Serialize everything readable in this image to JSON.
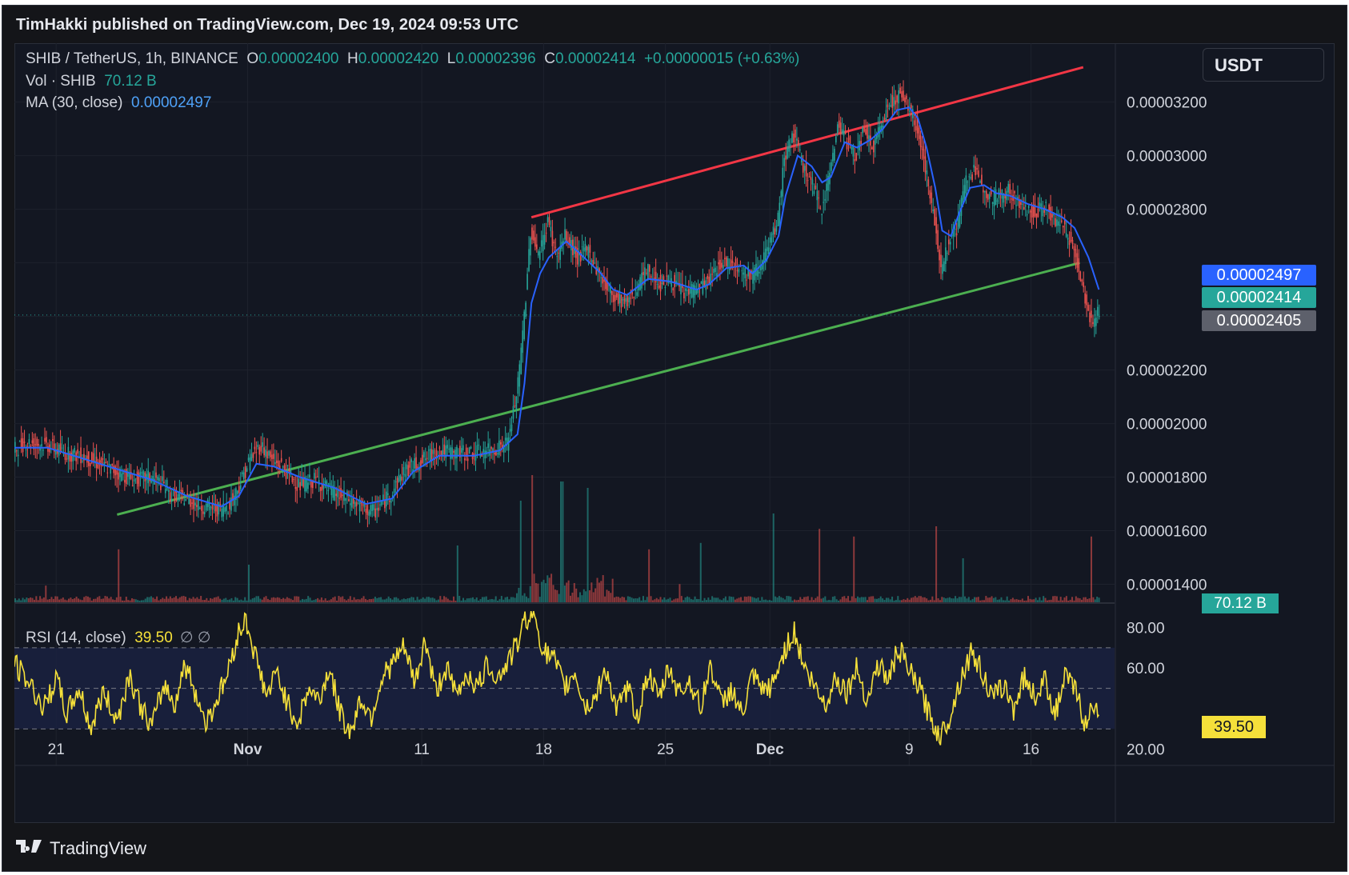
{
  "publisher": "TimHakki published on TradingView.com, Dec 19, 2024 09:53 UTC",
  "legend": {
    "symbol": "SHIB / TetherUS, 1h, BINANCE",
    "o_label": "O",
    "o_value": "0.00002400",
    "h_label": "H",
    "h_value": "0.00002420",
    "l_label": "L",
    "l_value": "0.00002396",
    "c_label": "C",
    "c_value": "0.00002414",
    "change": "+0.00000015 (+0.63%)",
    "vol_label": "Vol · SHIB",
    "vol_value": "70.12 B",
    "ma_label": "MA (30, close)",
    "ma_value": "0.00002497",
    "rsi_label": "RSI (14, close)",
    "rsi_value": "39.50",
    "rsi_extra": "∅ ∅"
  },
  "currency": "USDT",
  "tags": {
    "ma": "0.00002497",
    "close": "0.00002414",
    "cursor": "0.00002405",
    "volume": "70.12 B",
    "rsi": "39.50"
  },
  "colors": {
    "up": "#26a69a",
    "down": "#ef5350",
    "ma": "#2962ff",
    "upper_trend": "#f23645",
    "lower_trend": "#4caf50",
    "rsi": "#f5e03a",
    "background": "#131722"
  },
  "brand": "TradingView",
  "chart_data": [
    {
      "type": "candlestick",
      "title": "SHIB / TetherUS, 1h, BINANCE",
      "ylim": [
        1.33e-05,
        3.36e-05
      ],
      "y_ticks": [
        3.2e-05,
        3e-05,
        2.8e-05,
        2.6e-05,
        2.4e-05,
        2.2e-05,
        2e-05,
        1.8e-05,
        1.6e-05,
        1.4e-05
      ],
      "y_tick_labels": [
        "0.00003200",
        "0.00003000",
        "0.00002800",
        "",
        "",
        "0.00002200",
        "0.00002000",
        "0.00001800",
        "0.00001600",
        "0.00001400"
      ],
      "x_tick_labels": [
        "21",
        "Nov",
        "11",
        "18",
        "25",
        "Dec",
        "9",
        "16"
      ],
      "x_tick_days": [
        21,
        32,
        42,
        49,
        56,
        62,
        70,
        77
      ],
      "x_range_days": [
        18.6,
        81.8
      ],
      "close_path": [
        [
          18.6,
          1.9e-05
        ],
        [
          19.3,
          1.93e-05
        ],
        [
          20.5,
          1.92e-05
        ],
        [
          21.5,
          1.89e-05
        ],
        [
          22.5,
          1.88e-05
        ],
        [
          23.5,
          1.85e-05
        ],
        [
          24.5,
          1.82e-05
        ],
        [
          25.5,
          1.79e-05
        ],
        [
          26.5,
          1.8e-05
        ],
        [
          27.5,
          1.76e-05
        ],
        [
          26.5,
          1.75e-05
        ],
        [
          28.5,
          1.72e-05
        ],
        [
          29.5,
          1.69e-05
        ],
        [
          30.5,
          1.68e-05
        ],
        [
          31.0,
          1.7e-05
        ],
        [
          31.5,
          1.76e-05
        ],
        [
          32.2,
          1.87e-05
        ],
        [
          32.8,
          1.92e-05
        ],
        [
          33.5,
          1.86e-05
        ],
        [
          34.0,
          1.84e-05
        ],
        [
          35.0,
          1.77e-05
        ],
        [
          36.0,
          1.79e-05
        ],
        [
          37.0,
          1.74e-05
        ],
        [
          38.0,
          1.71e-05
        ],
        [
          38.8,
          1.68e-05
        ],
        [
          39.3,
          1.67e-05
        ],
        [
          40.3,
          1.74e-05
        ],
        [
          41.0,
          1.82e-05
        ],
        [
          42.0,
          1.86e-05
        ],
        [
          43.0,
          1.9e-05
        ],
        [
          44.0,
          1.89e-05
        ],
        [
          45.0,
          1.89e-05
        ],
        [
          46.0,
          1.9e-05
        ],
        [
          47.0,
          1.93e-05
        ],
        [
          47.6,
          2.15e-05
        ],
        [
          48.0,
          2.45e-05
        ],
        [
          48.3,
          2.72e-05
        ],
        [
          48.8,
          2.63e-05
        ],
        [
          49.3,
          2.76e-05
        ],
        [
          49.8,
          2.62e-05
        ],
        [
          50.3,
          2.7e-05
        ],
        [
          51.0,
          2.62e-05
        ],
        [
          51.6,
          2.65e-05
        ],
        [
          52.3,
          2.55e-05
        ],
        [
          53.0,
          2.48e-05
        ],
        [
          53.8,
          2.45e-05
        ],
        [
          54.4,
          2.51e-05
        ],
        [
          55.0,
          2.57e-05
        ],
        [
          55.8,
          2.52e-05
        ],
        [
          56.3,
          2.54e-05
        ],
        [
          57.0,
          2.49e-05
        ],
        [
          57.8,
          2.5e-05
        ],
        [
          58.5,
          2.53e-05
        ],
        [
          59.2,
          2.6e-05
        ],
        [
          60.0,
          2.6e-05
        ],
        [
          60.5,
          2.57e-05
        ],
        [
          61.0,
          2.55e-05
        ],
        [
          61.5,
          2.6e-05
        ],
        [
          62.0,
          2.66e-05
        ],
        [
          62.5,
          2.75e-05
        ],
        [
          62.9,
          3e-05
        ],
        [
          63.4,
          3.08e-05
        ],
        [
          63.9,
          2.97e-05
        ],
        [
          64.4,
          2.9e-05
        ],
        [
          65.0,
          2.8e-05
        ],
        [
          65.5,
          2.94e-05
        ],
        [
          66.0,
          3.13e-05
        ],
        [
          66.4,
          3.06e-05
        ],
        [
          67.0,
          3e-05
        ],
        [
          67.5,
          3.1e-05
        ],
        [
          68.0,
          3.02e-05
        ],
        [
          68.5,
          3.13e-05
        ],
        [
          69.0,
          3.2e-05
        ],
        [
          69.5,
          3.23e-05
        ],
        [
          70.0,
          3.18e-05
        ],
        [
          70.5,
          3.11e-05
        ],
        [
          71.0,
          2.95e-05
        ],
        [
          71.5,
          2.75e-05
        ],
        [
          71.9,
          2.58e-05
        ],
        [
          72.3,
          2.68e-05
        ],
        [
          72.8,
          2.73e-05
        ],
        [
          73.3,
          2.91e-05
        ],
        [
          73.8,
          2.94e-05
        ],
        [
          74.3,
          2.89e-05
        ],
        [
          74.8,
          2.84e-05
        ],
        [
          75.3,
          2.85e-05
        ],
        [
          75.8,
          2.87e-05
        ],
        [
          76.3,
          2.82e-05
        ],
        [
          76.8,
          2.8e-05
        ],
        [
          77.3,
          2.79e-05
        ],
        [
          77.8,
          2.81e-05
        ],
        [
          78.3,
          2.77e-05
        ],
        [
          78.8,
          2.74e-05
        ],
        [
          79.3,
          2.69e-05
        ],
        [
          79.8,
          2.58e-05
        ],
        [
          80.3,
          2.43e-05
        ],
        [
          80.6,
          2.38e-05
        ],
        [
          80.9,
          2.41e-05
        ]
      ],
      "ma_path": [
        [
          18.6,
          1.91e-05
        ],
        [
          20.5,
          1.91e-05
        ],
        [
          22.5,
          1.87e-05
        ],
        [
          24.5,
          1.83e-05
        ],
        [
          26.5,
          1.79e-05
        ],
        [
          28.5,
          1.73e-05
        ],
        [
          30.5,
          1.69e-05
        ],
        [
          31.5,
          1.73e-05
        ],
        [
          32.5,
          1.85e-05
        ],
        [
          33.5,
          1.84e-05
        ],
        [
          35.0,
          1.8e-05
        ],
        [
          37.0,
          1.76e-05
        ],
        [
          38.8,
          1.7e-05
        ],
        [
          40.3,
          1.72e-05
        ],
        [
          41.5,
          1.82e-05
        ],
        [
          43.0,
          1.88e-05
        ],
        [
          45.0,
          1.88e-05
        ],
        [
          46.5,
          1.9e-05
        ],
        [
          47.5,
          1.96e-05
        ],
        [
          47.9,
          2.15e-05
        ],
        [
          48.3,
          2.45e-05
        ],
        [
          48.8,
          2.56e-05
        ],
        [
          49.3,
          2.62e-05
        ],
        [
          50.3,
          2.68e-05
        ],
        [
          51.0,
          2.64e-05
        ],
        [
          52.3,
          2.56e-05
        ],
        [
          53.0,
          2.5e-05
        ],
        [
          53.8,
          2.48e-05
        ],
        [
          55.0,
          2.54e-05
        ],
        [
          56.3,
          2.53e-05
        ],
        [
          57.8,
          2.5e-05
        ],
        [
          58.5,
          2.52e-05
        ],
        [
          59.5,
          2.58e-05
        ],
        [
          60.5,
          2.59e-05
        ],
        [
          61.0,
          2.56e-05
        ],
        [
          61.8,
          2.61e-05
        ],
        [
          62.5,
          2.7e-05
        ],
        [
          62.9,
          2.85e-05
        ],
        [
          63.6,
          3e-05
        ],
        [
          64.4,
          2.96e-05
        ],
        [
          65.0,
          2.9e-05
        ],
        [
          65.5,
          2.92e-05
        ],
        [
          66.3,
          3.05e-05
        ],
        [
          67.0,
          3.03e-05
        ],
        [
          67.8,
          3.06e-05
        ],
        [
          68.5,
          3.1e-05
        ],
        [
          69.3,
          3.17e-05
        ],
        [
          70.0,
          3.18e-05
        ],
        [
          70.5,
          3.14e-05
        ],
        [
          71.0,
          3.03e-05
        ],
        [
          71.5,
          2.88e-05
        ],
        [
          71.9,
          2.72e-05
        ],
        [
          72.4,
          2.7e-05
        ],
        [
          72.9,
          2.79e-05
        ],
        [
          73.5,
          2.88e-05
        ],
        [
          74.3,
          2.89e-05
        ],
        [
          75.0,
          2.86e-05
        ],
        [
          75.8,
          2.85e-05
        ],
        [
          76.8,
          2.82e-05
        ],
        [
          77.8,
          2.8e-05
        ],
        [
          78.8,
          2.77e-05
        ],
        [
          79.5,
          2.73e-05
        ],
        [
          80.3,
          2.62e-05
        ],
        [
          80.9,
          2.5e-05
        ]
      ],
      "upper_trendline": [
        [
          48.3,
          2.77e-05
        ],
        [
          80.0,
          3.33e-05
        ]
      ],
      "lower_trendline": [
        [
          24.5,
          1.66e-05
        ],
        [
          79.8,
          2.6e-05
        ]
      ],
      "cursor_price": 2.405e-05
    },
    {
      "type": "bar",
      "title": "Vol · SHIB",
      "last_value": "70.12 B",
      "volume_relative_spikes": [
        [
          24.5,
          0.42
        ],
        [
          32.0,
          0.3
        ],
        [
          44.0,
          0.45
        ],
        [
          47.6,
          0.8
        ],
        [
          48.3,
          1.0
        ],
        [
          50.0,
          0.95
        ],
        [
          51.5,
          0.9
        ],
        [
          55.0,
          0.42
        ],
        [
          58.0,
          0.47
        ],
        [
          62.2,
          0.7
        ],
        [
          64.8,
          0.58
        ],
        [
          66.8,
          0.52
        ],
        [
          71.5,
          0.6
        ],
        [
          73.0,
          0.35
        ],
        [
          80.4,
          0.52
        ]
      ]
    },
    {
      "type": "line",
      "title": "RSI (14, close)",
      "ylim": [
        12,
        92
      ],
      "y_ticks": [
        80.0,
        60.0,
        40.0,
        20.0
      ],
      "y_tick_labels": [
        "80.00",
        "60.00",
        "",
        "20.00"
      ],
      "bands": [
        70,
        50,
        30
      ],
      "last_value": 39.5,
      "rsi_path": [
        [
          18.6,
          62
        ],
        [
          19.5,
          52
        ],
        [
          20.3,
          40
        ],
        [
          21.0,
          55
        ],
        [
          21.6,
          37
        ],
        [
          22.3,
          50
        ],
        [
          23.0,
          30
        ],
        [
          23.7,
          48
        ],
        [
          24.5,
          34
        ],
        [
          25.2,
          57
        ],
        [
          25.9,
          40
        ],
        [
          26.5,
          31
        ],
        [
          27.2,
          52
        ],
        [
          27.8,
          42
        ],
        [
          28.4,
          62
        ],
        [
          29.0,
          48
        ],
        [
          29.6,
          33
        ],
        [
          30.2,
          44
        ],
        [
          30.8,
          56
        ],
        [
          31.4,
          76
        ],
        [
          31.9,
          84
        ],
        [
          32.5,
          64
        ],
        [
          33.1,
          46
        ],
        [
          33.7,
          58
        ],
        [
          34.3,
          42
        ],
        [
          34.9,
          33
        ],
        [
          35.5,
          50
        ],
        [
          36.1,
          44
        ],
        [
          36.7,
          60
        ],
        [
          37.3,
          38
        ],
        [
          37.9,
          28
        ],
        [
          38.5,
          45
        ],
        [
          39.1,
          36
        ],
        [
          39.7,
          55
        ],
        [
          40.3,
          62
        ],
        [
          41.0,
          70
        ],
        [
          41.6,
          52
        ],
        [
          42.2,
          74
        ],
        [
          42.8,
          48
        ],
        [
          43.4,
          60
        ],
        [
          44.0,
          46
        ],
        [
          44.6,
          58
        ],
        [
          45.2,
          50
        ],
        [
          45.8,
          62
        ],
        [
          46.4,
          55
        ],
        [
          47.0,
          64
        ],
        [
          47.5,
          72
        ],
        [
          48.0,
          85
        ],
        [
          48.5,
          86
        ],
        [
          49.0,
          68
        ],
        [
          49.6,
          64
        ],
        [
          50.2,
          50
        ],
        [
          50.8,
          58
        ],
        [
          51.4,
          40
        ],
        [
          52.0,
          46
        ],
        [
          52.6,
          60
        ],
        [
          53.2,
          38
        ],
        [
          53.8,
          50
        ],
        [
          54.4,
          36
        ],
        [
          55.0,
          58
        ],
        [
          55.6,
          44
        ],
        [
          56.2,
          60
        ],
        [
          56.8,
          48
        ],
        [
          57.4,
          54
        ],
        [
          58.0,
          40
        ],
        [
          58.6,
          62
        ],
        [
          59.2,
          42
        ],
        [
          59.8,
          50
        ],
        [
          60.4,
          36
        ],
        [
          61.0,
          56
        ],
        [
          61.6,
          48
        ],
        [
          62.2,
          52
        ],
        [
          62.8,
          68
        ],
        [
          63.4,
          78
        ],
        [
          64.0,
          60
        ],
        [
          64.6,
          50
        ],
        [
          65.2,
          42
        ],
        [
          65.8,
          56
        ],
        [
          66.4,
          48
        ],
        [
          67.0,
          60
        ],
        [
          67.6,
          44
        ],
        [
          68.2,
          62
        ],
        [
          68.8,
          54
        ],
        [
          69.4,
          70
        ],
        [
          70.0,
          58
        ],
        [
          70.6,
          50
        ],
        [
          71.2,
          36
        ],
        [
          71.8,
          26
        ],
        [
          72.4,
          38
        ],
        [
          73.0,
          56
        ],
        [
          73.6,
          68
        ],
        [
          74.2,
          58
        ],
        [
          74.8,
          44
        ],
        [
          75.4,
          52
        ],
        [
          76.0,
          40
        ],
        [
          76.6,
          56
        ],
        [
          77.2,
          46
        ],
        [
          77.8,
          54
        ],
        [
          78.4,
          38
        ],
        [
          79.0,
          56
        ],
        [
          79.6,
          48
        ],
        [
          80.2,
          30
        ],
        [
          80.6,
          44
        ],
        [
          80.9,
          39.5
        ]
      ]
    }
  ]
}
